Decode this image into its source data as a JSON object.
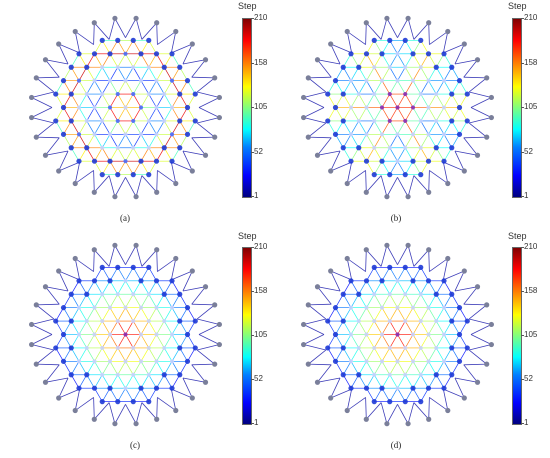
{
  "figure": {
    "panels": [
      {
        "id": "a",
        "label": "(a)",
        "pattern": "rings"
      },
      {
        "id": "b",
        "label": "(b)",
        "pattern": "radial"
      },
      {
        "id": "c",
        "label": "(c)",
        "pattern": "center"
      },
      {
        "id": "d",
        "label": "(d)",
        "pattern": "center"
      }
    ],
    "colorbar": {
      "title": "Step",
      "ticks": [
        "210",
        "158",
        "105",
        "52",
        "1"
      ],
      "colormap": "jet",
      "min": 1,
      "max": 210
    },
    "colors": {
      "outer_node": "#7a7f9a",
      "node_blue": "#1f3ad6",
      "node_purple": "#8a2fb5",
      "edge_outer": "#3d3db8"
    }
  }
}
